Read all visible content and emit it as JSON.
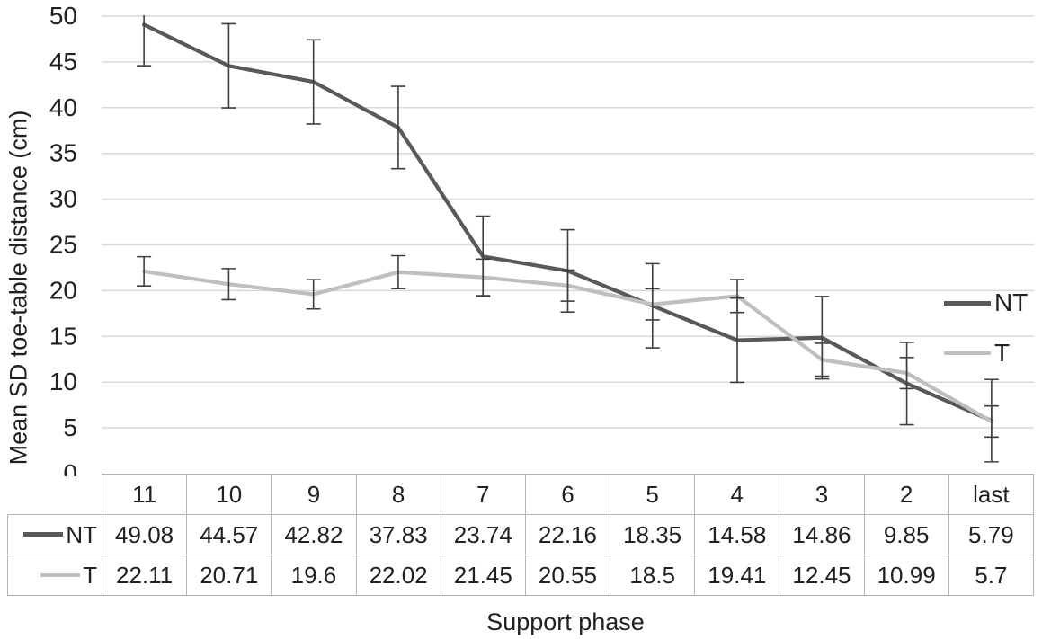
{
  "figure": {
    "background": "#ffffff",
    "text_color": "#212121",
    "grid_color": "#d9d9d9",
    "table_border_color": "#b3b3b3",
    "error_bar_color": "#3f3f3f"
  },
  "chart_data": {
    "type": "line",
    "title": "",
    "xlabel": "Support phase",
    "ylabel": "Mean SD toe-table distance (cm)",
    "categories": [
      "11",
      "10",
      "9",
      "8",
      "7",
      "6",
      "5",
      "4",
      "3",
      "2",
      "last"
    ],
    "series": [
      {
        "name": "NT",
        "color": "#595959",
        "values": [
          49.08,
          44.57,
          42.82,
          37.83,
          23.74,
          22.16,
          18.35,
          14.58,
          14.86,
          9.85,
          5.79
        ],
        "error_bars": [
          4.5,
          4.6,
          4.6,
          4.5,
          4.4,
          4.5,
          4.6,
          4.6,
          4.5,
          4.5,
          4.5
        ]
      },
      {
        "name": "T",
        "color": "#bfbfbf",
        "values": [
          22.11,
          20.71,
          19.6,
          22.02,
          21.45,
          20.55,
          18.5,
          19.41,
          12.45,
          10.99,
          5.7
        ],
        "error_bars": [
          1.6,
          1.7,
          1.6,
          1.8,
          2.0,
          1.7,
          1.7,
          1.8,
          1.8,
          1.7,
          1.7
        ]
      }
    ],
    "ylim": [
      0,
      50
    ],
    "ytick_interval": 5,
    "yticks": [
      "0",
      "5",
      "10",
      "15",
      "20",
      "25",
      "30",
      "35",
      "40",
      "45",
      "50"
    ],
    "grid": true,
    "legend_position": "right",
    "data_table": true
  }
}
